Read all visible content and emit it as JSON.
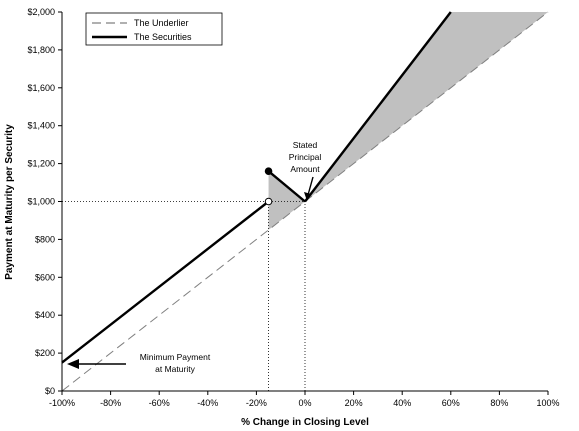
{
  "chart_data": {
    "type": "line",
    "title": "",
    "xlabel": "% Change in Closing Level",
    "ylabel": "Payment at Maturity per Security",
    "xlim": [
      -100,
      100
    ],
    "ylim": [
      0,
      2000
    ],
    "x_ticks": [
      "-100%",
      "-80%",
      "-60%",
      "-40%",
      "-20%",
      "0%",
      "20%",
      "40%",
      "60%",
      "80%",
      "100%"
    ],
    "x_tick_values": [
      -100,
      -80,
      -60,
      -40,
      -20,
      0,
      20,
      40,
      60,
      80,
      100
    ],
    "y_ticks": [
      "$0",
      "$200",
      "$400",
      "$600",
      "$800",
      "$1,000",
      "$1,200",
      "$1,400",
      "$1,600",
      "$1,800",
      "$2,000"
    ],
    "y_tick_values": [
      0,
      200,
      400,
      600,
      800,
      1000,
      1200,
      1400,
      1600,
      1800,
      2000
    ],
    "grid": false,
    "legend_position": "top-left",
    "series": [
      {
        "name": "The Underlier",
        "style": "dashed",
        "color": "#808080",
        "x": [
          -100,
          100
        ],
        "y": [
          0,
          2000
        ]
      },
      {
        "name": "The Securities",
        "style": "solid",
        "color": "#000000",
        "segments": [
          {
            "x": [
              -100,
              -15
            ],
            "y": [
              150,
              1000
            ]
          },
          {
            "x": [
              -15,
              0
            ],
            "y": [
              1160,
              1000
            ]
          },
          {
            "x": [
              0,
              60
            ],
            "y": [
              1000,
              2000
            ]
          }
        ]
      }
    ],
    "markers": [
      {
        "x": -15,
        "y": 1160,
        "fill": "filled"
      },
      {
        "x": -15,
        "y": 1000,
        "fill": "open"
      }
    ],
    "shaded_regions": [
      {
        "points": [
          [
            -15,
            850
          ],
          [
            -15,
            1000
          ],
          [
            0,
            1000
          ]
        ],
        "color": "#c0c0c0"
      },
      {
        "points": [
          [
            -15,
            1000
          ],
          [
            -15,
            1160
          ],
          [
            0,
            1000
          ]
        ],
        "color": "#c0c0c0"
      },
      {
        "points": [
          [
            0,
            1000
          ],
          [
            60,
            2000
          ],
          [
            100,
            2000
          ]
        ],
        "color": "#c0c0c0"
      }
    ],
    "reference_lines": [
      {
        "orientation": "horizontal",
        "y": 1000,
        "x_from": -100,
        "x_to": 0,
        "style": "dotted"
      },
      {
        "orientation": "vertical",
        "x": -15,
        "y_from": 0,
        "y_to": 1000,
        "style": "dotted"
      },
      {
        "orientation": "vertical",
        "x": 0,
        "y_from": 0,
        "y_to": 1000,
        "style": "dotted"
      }
    ],
    "annotations": {
      "stated_principal": [
        "Stated",
        "Principal",
        "Amount"
      ],
      "minimum_payment": [
        "Minimum Payment",
        "at Maturity"
      ]
    }
  }
}
